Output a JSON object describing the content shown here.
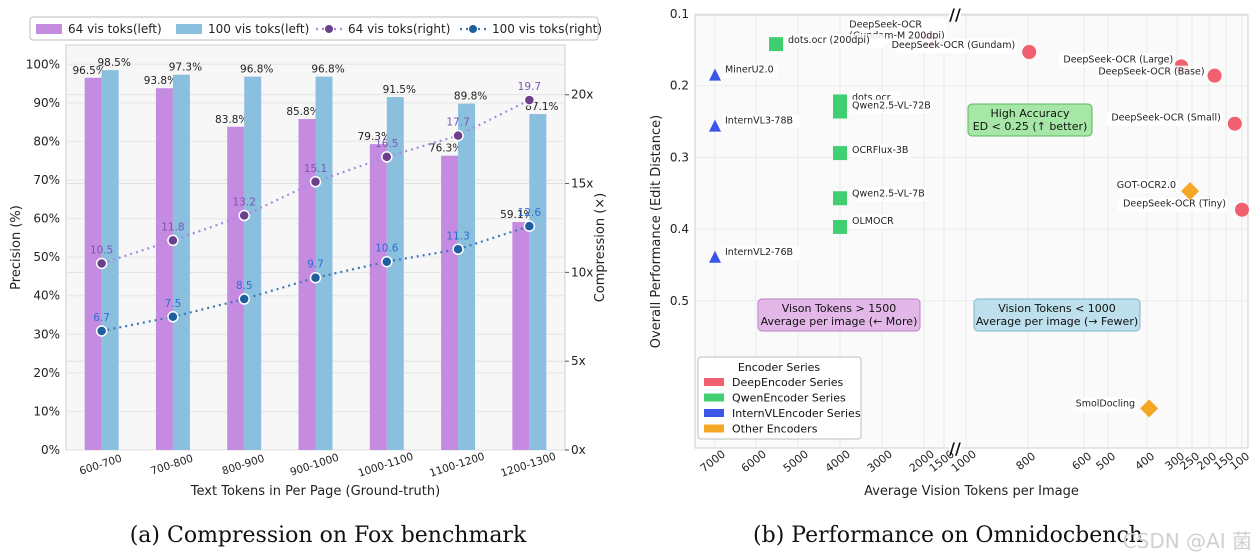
{
  "chart_data": [
    {
      "type": "bar",
      "panel_caption": "(a)  Compression on Fox benchmark",
      "xlabel": "Text Tokens in Per Page (Ground-truth)",
      "ylabel": "Precision (%)",
      "y2label": "Compression (×)",
      "ylim": [
        0,
        105
      ],
      "y2lim": [
        0,
        22.8
      ],
      "yticks": [
        "0%",
        "10%",
        "20%",
        "30%",
        "40%",
        "50%",
        "60%",
        "70%",
        "80%",
        "90%",
        "100%"
      ],
      "y2ticks": [
        "0x",
        "5x",
        "10x",
        "15x",
        "20x"
      ],
      "categories": [
        "600-700",
        "700-800",
        "800-900",
        "900-1000",
        "1000-1100",
        "1100-1200",
        "1200-1300"
      ],
      "legend_position": "top",
      "series": [
        {
          "name": "64 vis toks(left)",
          "kind": "bar",
          "axis": "left",
          "color": "#c58be0",
          "values": [
            96.5,
            93.8,
            83.8,
            85.8,
            79.3,
            76.3,
            59.1
          ],
          "labels": [
            "96.5%",
            "93.8%",
            "83.8%",
            "85.8%",
            "79.3%",
            "76.3%",
            "59.1%"
          ]
        },
        {
          "name": "100 vis toks(left)",
          "kind": "bar",
          "axis": "left",
          "color": "#8bbfde",
          "values": [
            98.5,
            97.3,
            96.8,
            96.8,
            91.5,
            89.8,
            87.1
          ],
          "labels": [
            "98.5%",
            "97.3%",
            "96.8%",
            "96.8%",
            "91.5%",
            "89.8%",
            "87.1%"
          ]
        },
        {
          "name": "64 vis toks(right)",
          "kind": "line",
          "axis": "right",
          "color": "#6b3f8c",
          "label_color": "#7b55b5",
          "values": [
            10.5,
            11.8,
            13.2,
            15.1,
            16.5,
            17.7,
            19.7
          ],
          "labels": [
            "10.5",
            "11.8",
            "13.2",
            "15.1",
            "16.5",
            "17.7",
            "19.7"
          ]
        },
        {
          "name": "100 vis toks(right)",
          "kind": "line",
          "axis": "right",
          "color": "#1f5f9f",
          "label_color": "#2b6fd6",
          "values": [
            6.7,
            7.5,
            8.5,
            9.7,
            10.6,
            11.3,
            12.6
          ],
          "labels": [
            "6.7",
            "7.5",
            "8.5",
            "9.7",
            "10.6",
            "11.3",
            "12.6"
          ]
        }
      ]
    },
    {
      "type": "scatter",
      "panel_caption": "(b)  Performance on Omnidocbench",
      "xlabel": "Average Vision Tokens per Image",
      "ylabel": "Overall Performance (Edit Distance)",
      "xlim": [
        7000,
        100
      ],
      "ylim": [
        0.1,
        0.55
      ],
      "x_axis_break": "between 1000 and 2000",
      "y_axis_break": "below 0.5",
      "xticks": [
        "7000",
        "6000",
        "5000",
        "4000",
        "3000",
        "2000",
        "1500",
        "1000",
        "800",
        "600",
        "500",
        "400",
        "300",
        "250",
        "200",
        "150",
        "100"
      ],
      "yticks": [
        "0.1",
        "0.2",
        "0.3",
        "0.4",
        "0.5"
      ],
      "legend": {
        "title": "Encoder Series",
        "position": "bottom-left",
        "items": [
          {
            "label": "DeepEncoder Series",
            "color": "#f0606f"
          },
          {
            "label": "QwenEncoder Series",
            "color": "#3fcf70"
          },
          {
            "label": "InternVLEncoder Series",
            "color": "#3a55e8"
          },
          {
            "label": "Other Encoders",
            "color": "#f5a623"
          }
        ]
      },
      "annotations": [
        {
          "text": [
            "High Accuracy",
            "ED < 0.25 (↑ better)"
          ],
          "bg": "#a6e6a6",
          "border": "#5cb85c"
        },
        {
          "text": [
            "Vison Tokens > 1500",
            "Average per image (← More)"
          ],
          "bg": "#e3b8e8",
          "border": "#b77fbf"
        },
        {
          "text": [
            "Vision Tokens < 1000",
            "Average per image (→ Fewer)"
          ],
          "bg": "#bde0ec",
          "border": "#7fb4cc"
        }
      ],
      "points": [
        {
          "label": "DeepSeek-OCR (Gundam-M 200dpi)",
          "x": 1853,
          "y": 0.137,
          "series": "DeepEncoder Series"
        },
        {
          "label": "DeepSeek-OCR (Gundam)",
          "x": 795,
          "y": 0.153,
          "series": "DeepEncoder Series"
        },
        {
          "label": "DeepSeek-OCR (Large)",
          "x": 285,
          "y": 0.173,
          "series": "DeepEncoder Series"
        },
        {
          "label": "DeepSeek-OCR (Base)",
          "x": 182,
          "y": 0.186,
          "series": "DeepEncoder Series"
        },
        {
          "label": "DeepSeek-OCR (Small)",
          "x": 120,
          "y": 0.253,
          "series": "DeepEncoder Series"
        },
        {
          "label": "DeepSeek-OCR (Tiny)",
          "x": 100,
          "y": 0.373,
          "series": "DeepEncoder Series"
        },
        {
          "label": "dots.ocr (200dpi)",
          "x": 5500,
          "y": 0.142,
          "series": "QwenEncoder Series"
        },
        {
          "label": "dots.ocr",
          "x": 4000,
          "y": 0.222,
          "series": "QwenEncoder Series"
        },
        {
          "label": "Qwen2.5-VL-72B",
          "x": 4000,
          "y": 0.236,
          "series": "QwenEncoder Series"
        },
        {
          "label": "OCRFlux-3B",
          "x": 4000,
          "y": 0.294,
          "series": "QwenEncoder Series"
        },
        {
          "label": "Qwen2.5-VL-7B",
          "x": 4000,
          "y": 0.357,
          "series": "QwenEncoder Series"
        },
        {
          "label": "OLMOCR",
          "x": 4000,
          "y": 0.397,
          "series": "QwenEncoder Series"
        },
        {
          "label": "MinerU2.0",
          "x": 7000,
          "y": 0.186,
          "series": "InternVLEncoder Series"
        },
        {
          "label": "InternVL3-78B",
          "x": 7000,
          "y": 0.257,
          "series": "InternVLEncoder Series"
        },
        {
          "label": "InternVL2-76B",
          "x": 7000,
          "y": 0.44,
          "series": "InternVLEncoder Series"
        },
        {
          "label": "GOT-OCR2.0",
          "x": 256,
          "y": 0.347,
          "series": "Other Encoders"
        },
        {
          "label": "SmolDocling",
          "x": 392,
          "y": 0.65,
          "series": "Other Encoders"
        }
      ]
    }
  ],
  "watermark": "CSDN @AI 菌"
}
